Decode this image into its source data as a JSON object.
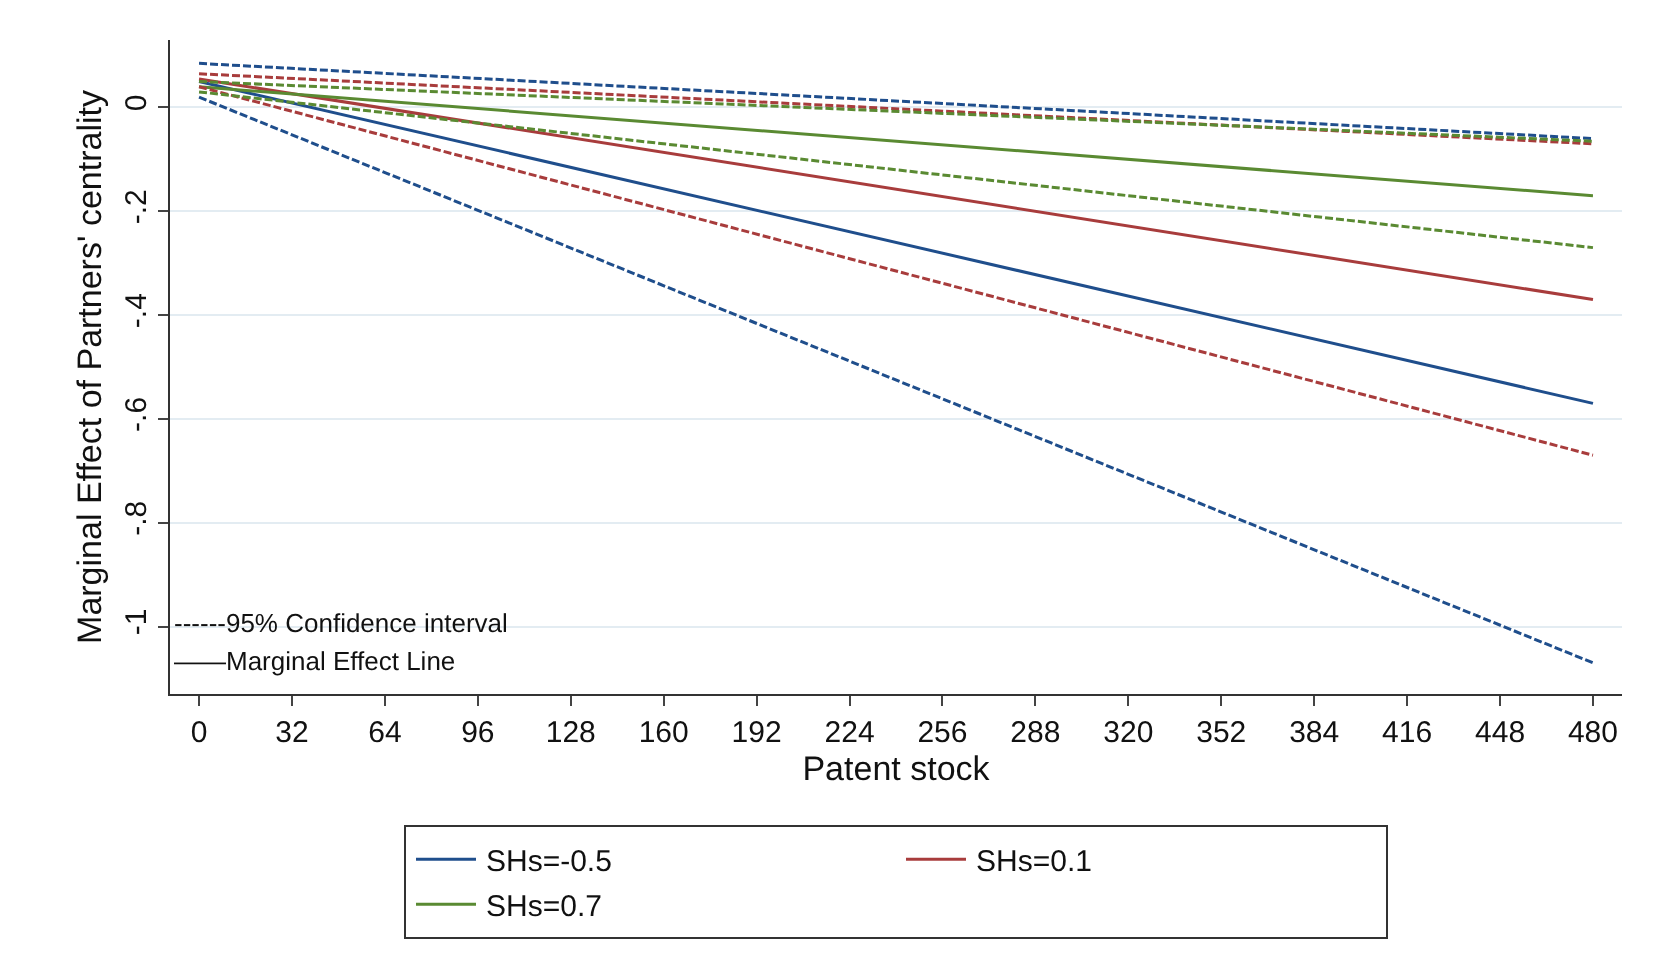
{
  "chart_data": {
    "type": "line",
    "xlabel": "Patent stock",
    "ylabel": "Marginal Effect of Partners' centrality",
    "x": [
      0,
      480
    ],
    "series": [
      {
        "name": "SHs=-0.5",
        "color": "#1f4e8c",
        "values": [
          0.05,
          -0.57
        ],
        "line_style": "solid"
      },
      {
        "name": "SHs=0.1",
        "color": "#a83c3c",
        "values": [
          0.055,
          -0.37
        ],
        "line_style": "solid"
      },
      {
        "name": "SHs=0.7",
        "color": "#5a8a32",
        "values": [
          0.04,
          -0.17
        ],
        "line_style": "solid"
      },
      {
        "color": "#1f4e8c",
        "values": [
          0.085,
          -0.06
        ],
        "line_style": "dashed"
      },
      {
        "color": "#1f4e8c",
        "values": [
          0.02,
          -1.07
        ],
        "line_style": "dashed"
      },
      {
        "color": "#a83c3c",
        "values": [
          0.065,
          -0.07
        ],
        "line_style": "dashed"
      },
      {
        "color": "#a83c3c",
        "values": [
          0.04,
          -0.67
        ],
        "line_style": "dashed"
      },
      {
        "color": "#5a8a32",
        "values": [
          0.05,
          -0.065
        ],
        "line_style": "dashed"
      },
      {
        "color": "#5a8a32",
        "values": [
          0.03,
          -0.27
        ],
        "line_style": "dashed"
      }
    ],
    "annotations": [
      "------95% Confidence interval",
      "——Marginal Effect Line"
    ],
    "xlim": [
      -10,
      490
    ],
    "xticks": [
      0,
      32,
      64,
      96,
      128,
      160,
      192,
      224,
      256,
      288,
      320,
      352,
      384,
      416,
      448,
      480
    ],
    "ylim": [
      -1.13,
      0.13
    ],
    "yticks": [
      {
        "value": 0,
        "label": "0"
      },
      {
        "value": -0.2,
        "label": "-.2"
      },
      {
        "value": -0.4,
        "label": "-.4"
      },
      {
        "value": -0.6,
        "label": "-.6"
      },
      {
        "value": -0.8,
        "label": "-.8"
      },
      {
        "value": -1,
        "label": "-1"
      }
    ],
    "grid": "y",
    "legend": "bottom",
    "marker": "none"
  }
}
